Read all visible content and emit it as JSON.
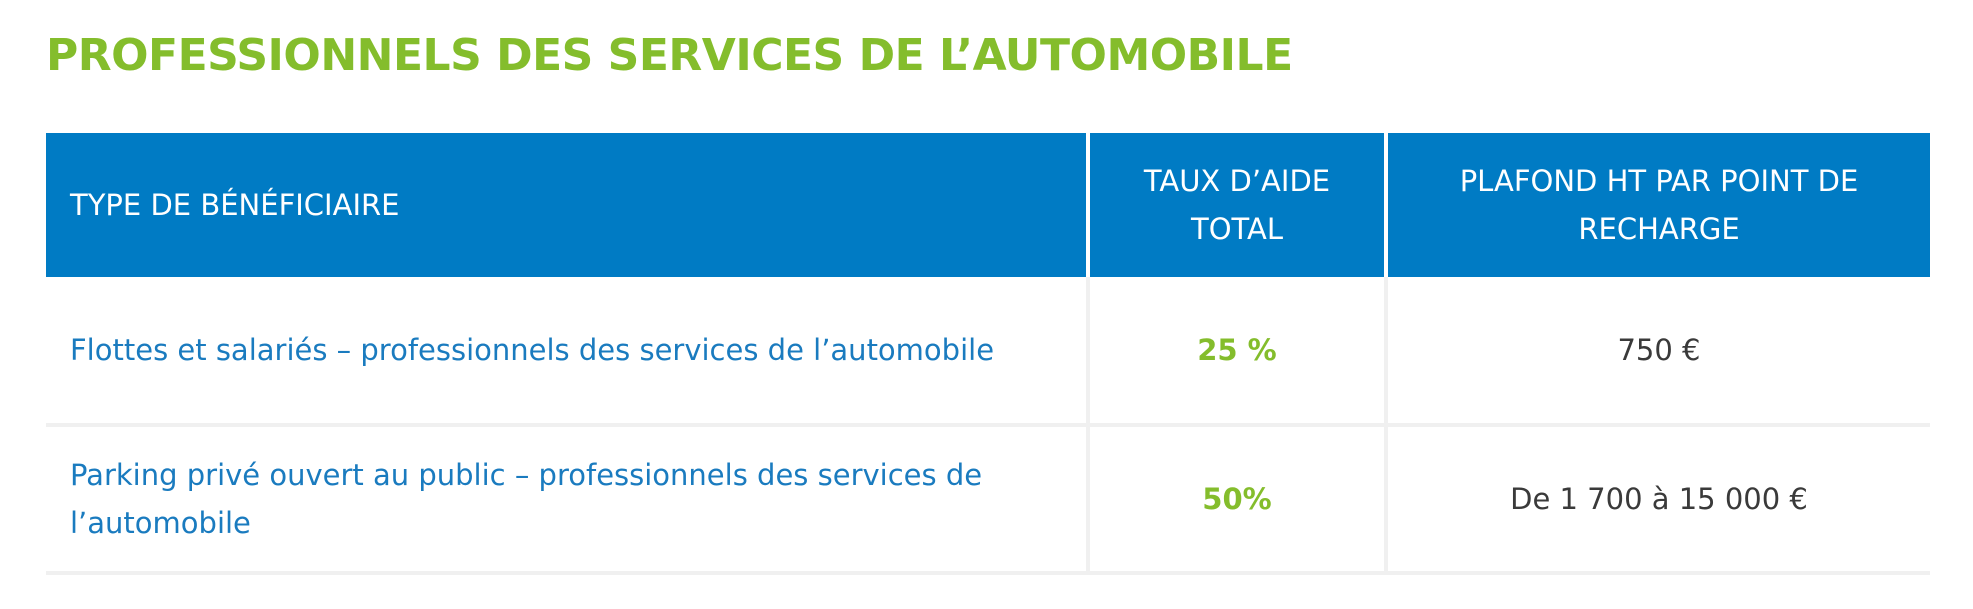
{
  "title": "PROFESSIONNELS DES SERVICES DE L’AUTOMOBILE",
  "table": {
    "headers": [
      "TYPE DE BÉNÉFICIAIRE",
      "TAUX D’AIDE TOTAL",
      "PLAFOND HT PAR POINT DE RECHARGE"
    ],
    "rows": [
      {
        "type": "Flottes et salariés – professionnels des services de l’automobile",
        "rate": "25 %",
        "cap": "750 €"
      },
      {
        "type": "Parking privé ouvert au public – professionnels des services de l’automobile",
        "rate": "50%",
        "cap": "De 1 700 à 15 000 €"
      }
    ]
  },
  "colors": {
    "title_green": "#84bd2c",
    "header_blue": "#007bc4",
    "label_blue": "#1a7bbf",
    "rate_green": "#84bd2c",
    "cap_text": "#3a3a3a",
    "divider": "#f0f0f0"
  }
}
